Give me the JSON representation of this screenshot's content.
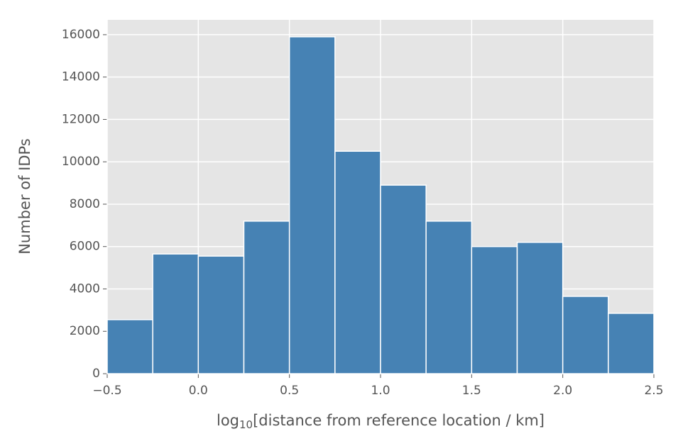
{
  "chart_data": {
    "type": "histogram",
    "bins": [
      -0.5,
      -0.25,
      0.0,
      0.25,
      0.5,
      0.75,
      1.0,
      1.25,
      1.5,
      1.75,
      2.0,
      2.25,
      2.5
    ],
    "values": [
      2550,
      5650,
      5550,
      7200,
      15900,
      10500,
      8900,
      7200,
      6000,
      6200,
      3650,
      2850
    ],
    "color": "#4682b4",
    "xlabel": {
      "base": "log",
      "subscript": "10",
      "text": "[distance from reference location / km]"
    },
    "ylabel": "Number of IDPs",
    "xlim": [
      -0.5,
      2.5
    ],
    "ylim": [
      0,
      16700
    ],
    "xticks": [
      {
        "value": -0.5,
        "label": "−0.5"
      },
      {
        "value": 0.0,
        "label": "0.0"
      },
      0.5,
      {
        "value": 1.0,
        "label": "1.0"
      },
      1.5,
      {
        "value": 2.0,
        "label": "2.0"
      },
      2.5
    ],
    "yticks": [
      0,
      2000,
      4000,
      6000,
      8000,
      10000,
      12000,
      14000,
      16000
    ],
    "grid": true
  }
}
